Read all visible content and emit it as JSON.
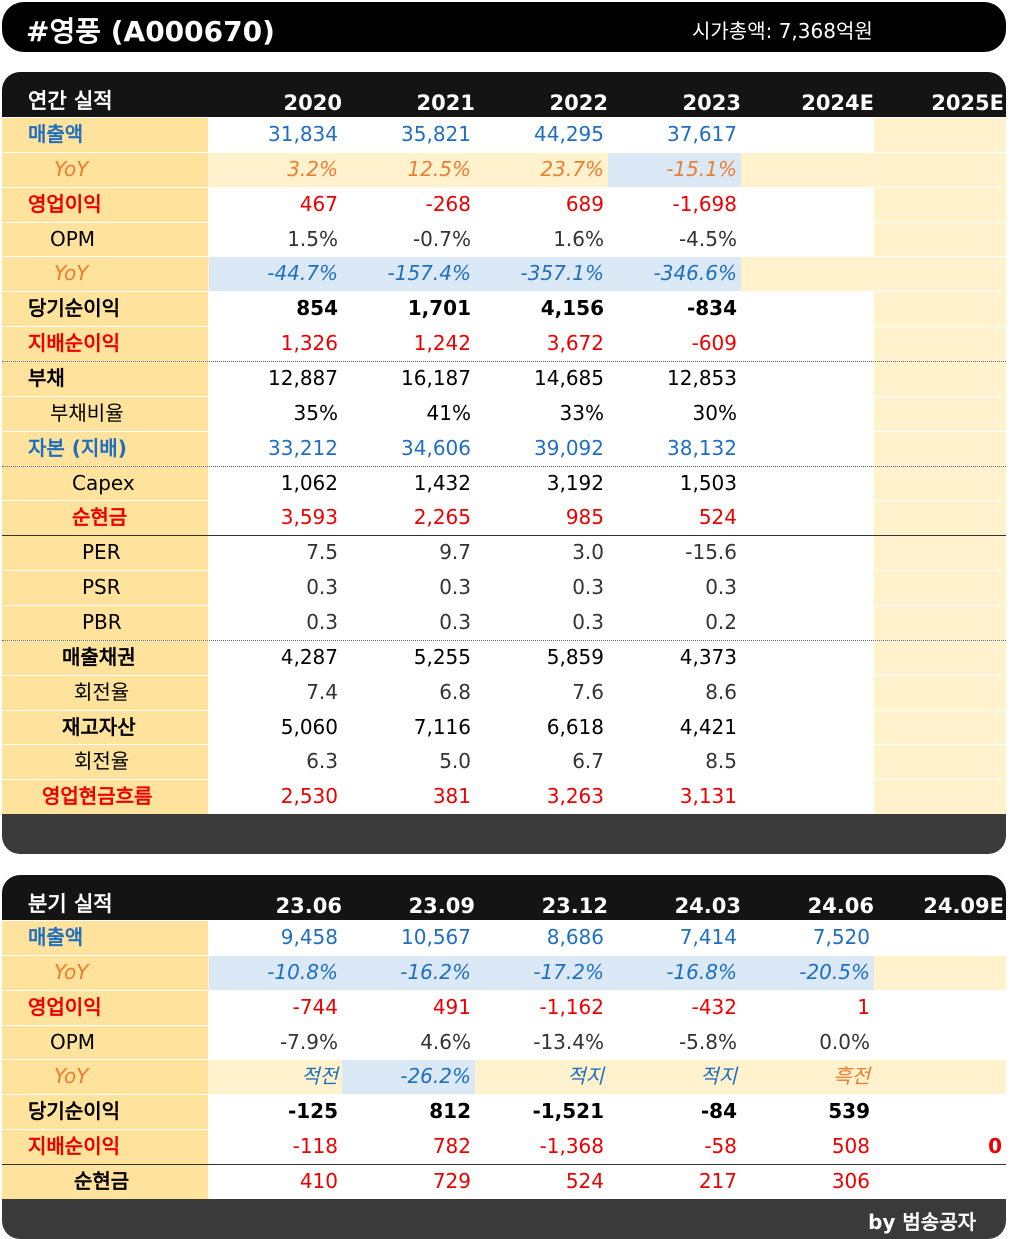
{
  "header": {
    "title": "#영풍 (A000670)",
    "market_cap": "시가총액: 7,368억원"
  },
  "annual": {
    "label": "연간 실적",
    "columns": [
      "2020",
      "2021",
      "2022",
      "2023",
      "2024E",
      "2025E"
    ],
    "rows": [
      {
        "label": "매출액",
        "values": [
          "31,834",
          "35,821",
          "44,295",
          "37,617"
        ]
      },
      {
        "label": "YoY",
        "values": [
          "3.2%",
          "12.5%",
          "23.7%",
          "-15.1%"
        ]
      },
      {
        "label": "영업이익",
        "values": [
          "467",
          "-268",
          "689",
          "-1,698"
        ]
      },
      {
        "label": "OPM",
        "values": [
          "1.5%",
          "-0.7%",
          "1.6%",
          "-4.5%"
        ]
      },
      {
        "label": "YoY",
        "values": [
          "-44.7%",
          "-157.4%",
          "-357.1%",
          "-346.6%"
        ]
      },
      {
        "label": "당기순이익",
        "values": [
          "854",
          "1,701",
          "4,156",
          "-834"
        ]
      },
      {
        "label": "지배순이익",
        "values": [
          "1,326",
          "1,242",
          "3,672",
          "-609"
        ]
      },
      {
        "label": "부채",
        "values": [
          "12,887",
          "16,187",
          "14,685",
          "12,853"
        ]
      },
      {
        "label": "부채비율",
        "values": [
          "35%",
          "41%",
          "33%",
          "30%"
        ]
      },
      {
        "label": "자본 (지배)",
        "values": [
          "33,212",
          "34,606",
          "39,092",
          "38,132"
        ]
      },
      {
        "label": "Capex",
        "values": [
          "1,062",
          "1,432",
          "3,192",
          "1,503"
        ]
      },
      {
        "label": "순현금",
        "values": [
          "3,593",
          "2,265",
          "985",
          "524"
        ]
      },
      {
        "label": "PER",
        "values": [
          "7.5",
          "9.7",
          "3.0",
          "-15.6"
        ]
      },
      {
        "label": "PSR",
        "values": [
          "0.3",
          "0.3",
          "0.3",
          "0.3"
        ]
      },
      {
        "label": "PBR",
        "values": [
          "0.3",
          "0.3",
          "0.3",
          "0.2"
        ]
      },
      {
        "label": "매출채권",
        "values": [
          "4,287",
          "5,255",
          "5,859",
          "4,373"
        ]
      },
      {
        "label": "회전율",
        "values": [
          "7.4",
          "6.8",
          "7.6",
          "8.6"
        ]
      },
      {
        "label": "재고자산",
        "values": [
          "5,060",
          "7,116",
          "6,618",
          "4,421"
        ]
      },
      {
        "label": "회전율",
        "values": [
          "6.3",
          "5.0",
          "6.7",
          "8.5"
        ]
      },
      {
        "label": "영업현금흐름",
        "values": [
          "2,530",
          "381",
          "3,263",
          "3,131"
        ]
      }
    ]
  },
  "quarterly": {
    "label": "분기 실적",
    "columns": [
      "23.06",
      "23.09",
      "23.12",
      "24.03",
      "24.06",
      "24.09E"
    ],
    "rows": [
      {
        "label": "매출액",
        "values": [
          "9,458",
          "10,567",
          "8,686",
          "7,414",
          "7,520"
        ]
      },
      {
        "label": "YoY",
        "values": [
          "-10.8%",
          "-16.2%",
          "-17.2%",
          "-16.8%",
          "-20.5%"
        ]
      },
      {
        "label": "영업이익",
        "values": [
          "-744",
          "491",
          "-1,162",
          "-432",
          "1"
        ]
      },
      {
        "label": "OPM",
        "values": [
          "-7.9%",
          "4.6%",
          "-13.4%",
          "-5.8%",
          "0.0%"
        ]
      },
      {
        "label": "YoY",
        "values": [
          "적전",
          "-26.2%",
          "적지",
          "적지",
          "흑전"
        ]
      },
      {
        "label": "당기순이익",
        "values": [
          "-125",
          "812",
          "-1,521",
          "-84",
          "539"
        ]
      },
      {
        "label": "지배순이익",
        "values": [
          "-118",
          "782",
          "-1,368",
          "-58",
          "508",
          "0"
        ]
      },
      {
        "label": "순현금",
        "values": [
          "410",
          "729",
          "524",
          "217",
          "306"
        ]
      }
    ]
  },
  "footer": {
    "credit": "by 범송공자"
  },
  "colors": {
    "label_bg": "#ffe29b",
    "estimate_bg": "#fff2cc",
    "blue": "#1f6fc0",
    "red": "#ee0000",
    "orange": "#ed7d31",
    "pink_bg": "#fde3d6",
    "light_blue_bg": "#dbe9f7"
  }
}
